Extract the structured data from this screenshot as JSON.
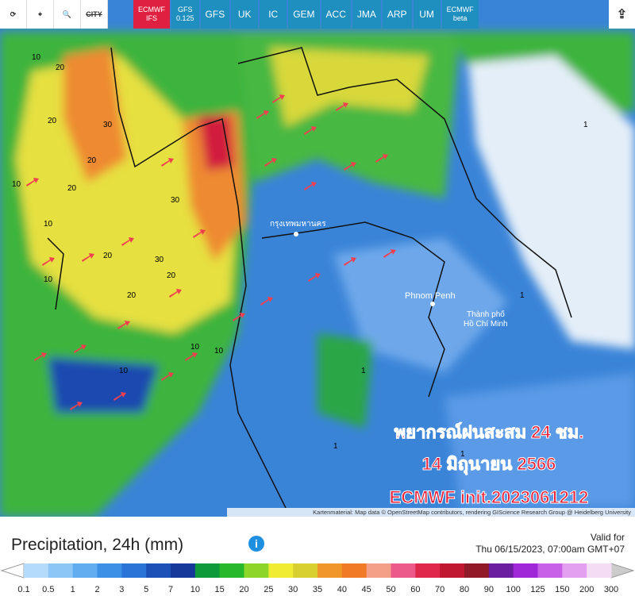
{
  "toolbar": {
    "city": "CITY",
    "models": [
      {
        "name": "ECMWF",
        "sub": "IFS",
        "active": true
      },
      {
        "name": "GFS",
        "sub": "0.125"
      },
      {
        "name": "GFS"
      },
      {
        "name": "UK"
      },
      {
        "name": "IC"
      },
      {
        "name": "GEM"
      },
      {
        "name": "ACC"
      },
      {
        "name": "JMA"
      },
      {
        "name": "ARP"
      },
      {
        "name": "UM"
      },
      {
        "name": "ECMWF",
        "sub": "beta"
      }
    ]
  },
  "map": {
    "places": [
      "กรุงเทพมหานคร",
      "Phnom Penh",
      "Thành phố",
      "Hồ Chí Minh"
    ],
    "contour_labels": [
      10,
      20,
      20,
      10,
      20,
      30,
      20,
      30,
      10,
      20,
      30,
      20,
      10,
      10,
      10,
      20,
      10,
      1,
      1,
      1,
      1,
      1
    ],
    "overlay": [
      "พยากรณ์ฝนสะสม 24 ชม.",
      "14 มิถุนายน 2566",
      "ECMWF init.2023061212"
    ],
    "attribution": "Kartenmaterial: Map data © OpenStreetMap contributors, rendering GIScience Research Group @ Heidelberg University"
  },
  "footer": {
    "title": "Precipitation, 24h (mm)",
    "valid_label": "Valid for",
    "valid_time": "Thu 06/15/2023, 07:00am GMT+07"
  },
  "legend": {
    "labels": [
      0.1,
      0.5,
      1,
      2,
      3,
      5,
      7,
      10,
      15,
      20,
      25,
      30,
      35,
      40,
      45,
      50,
      60,
      70,
      80,
      90,
      100,
      125,
      150,
      200,
      300
    ],
    "colors": [
      "#b4dcfa",
      "#8cc6f6",
      "#62acf0",
      "#3c90e6",
      "#2a74d8",
      "#1c52b8",
      "#16389a",
      "#0e9a3a",
      "#28b82c",
      "#8cd62a",
      "#f0ec34",
      "#d8d030",
      "#f0962a",
      "#f07a26",
      "#f4a088",
      "#ec5a8c",
      "#e0284a",
      "#c01830",
      "#901a28",
      "#6c1ea0",
      "#a028d8",
      "#c860e8",
      "#e4a0f0",
      "#f4dcf4"
    ]
  }
}
